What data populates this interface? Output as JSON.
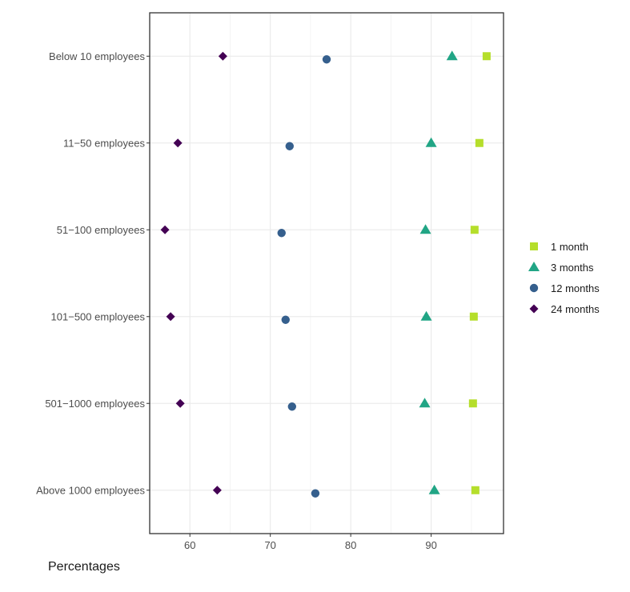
{
  "chart_data": {
    "type": "scatter",
    "title": "",
    "xlabel": "Percentages",
    "ylabel": "",
    "xlim": [
      55,
      99
    ],
    "xticks": [
      60,
      70,
      80,
      90
    ],
    "grid": true,
    "legend_position": "right",
    "categories": [
      "Below 10 employees",
      "11−50 employees",
      "51−100 employees",
      "101−500 employees",
      "501−1000 employees",
      "Above 1000 employees"
    ],
    "series": [
      {
        "name": "1 month",
        "marker": "square",
        "color": "#b5de2b",
        "values": [
          96.9,
          96.0,
          95.4,
          95.3,
          95.2,
          95.5
        ]
      },
      {
        "name": "3 months",
        "marker": "triangle",
        "color": "#21a585",
        "values": [
          92.6,
          90.0,
          89.3,
          89.4,
          89.2,
          90.4
        ]
      },
      {
        "name": "12 months",
        "marker": "circle",
        "color": "#355f8d",
        "values": [
          77.0,
          72.4,
          71.4,
          71.9,
          72.7,
          75.6
        ]
      },
      {
        "name": "24 months",
        "marker": "diamond",
        "color": "#440154",
        "values": [
          64.1,
          58.5,
          56.9,
          57.6,
          58.8,
          63.4
        ]
      }
    ]
  }
}
